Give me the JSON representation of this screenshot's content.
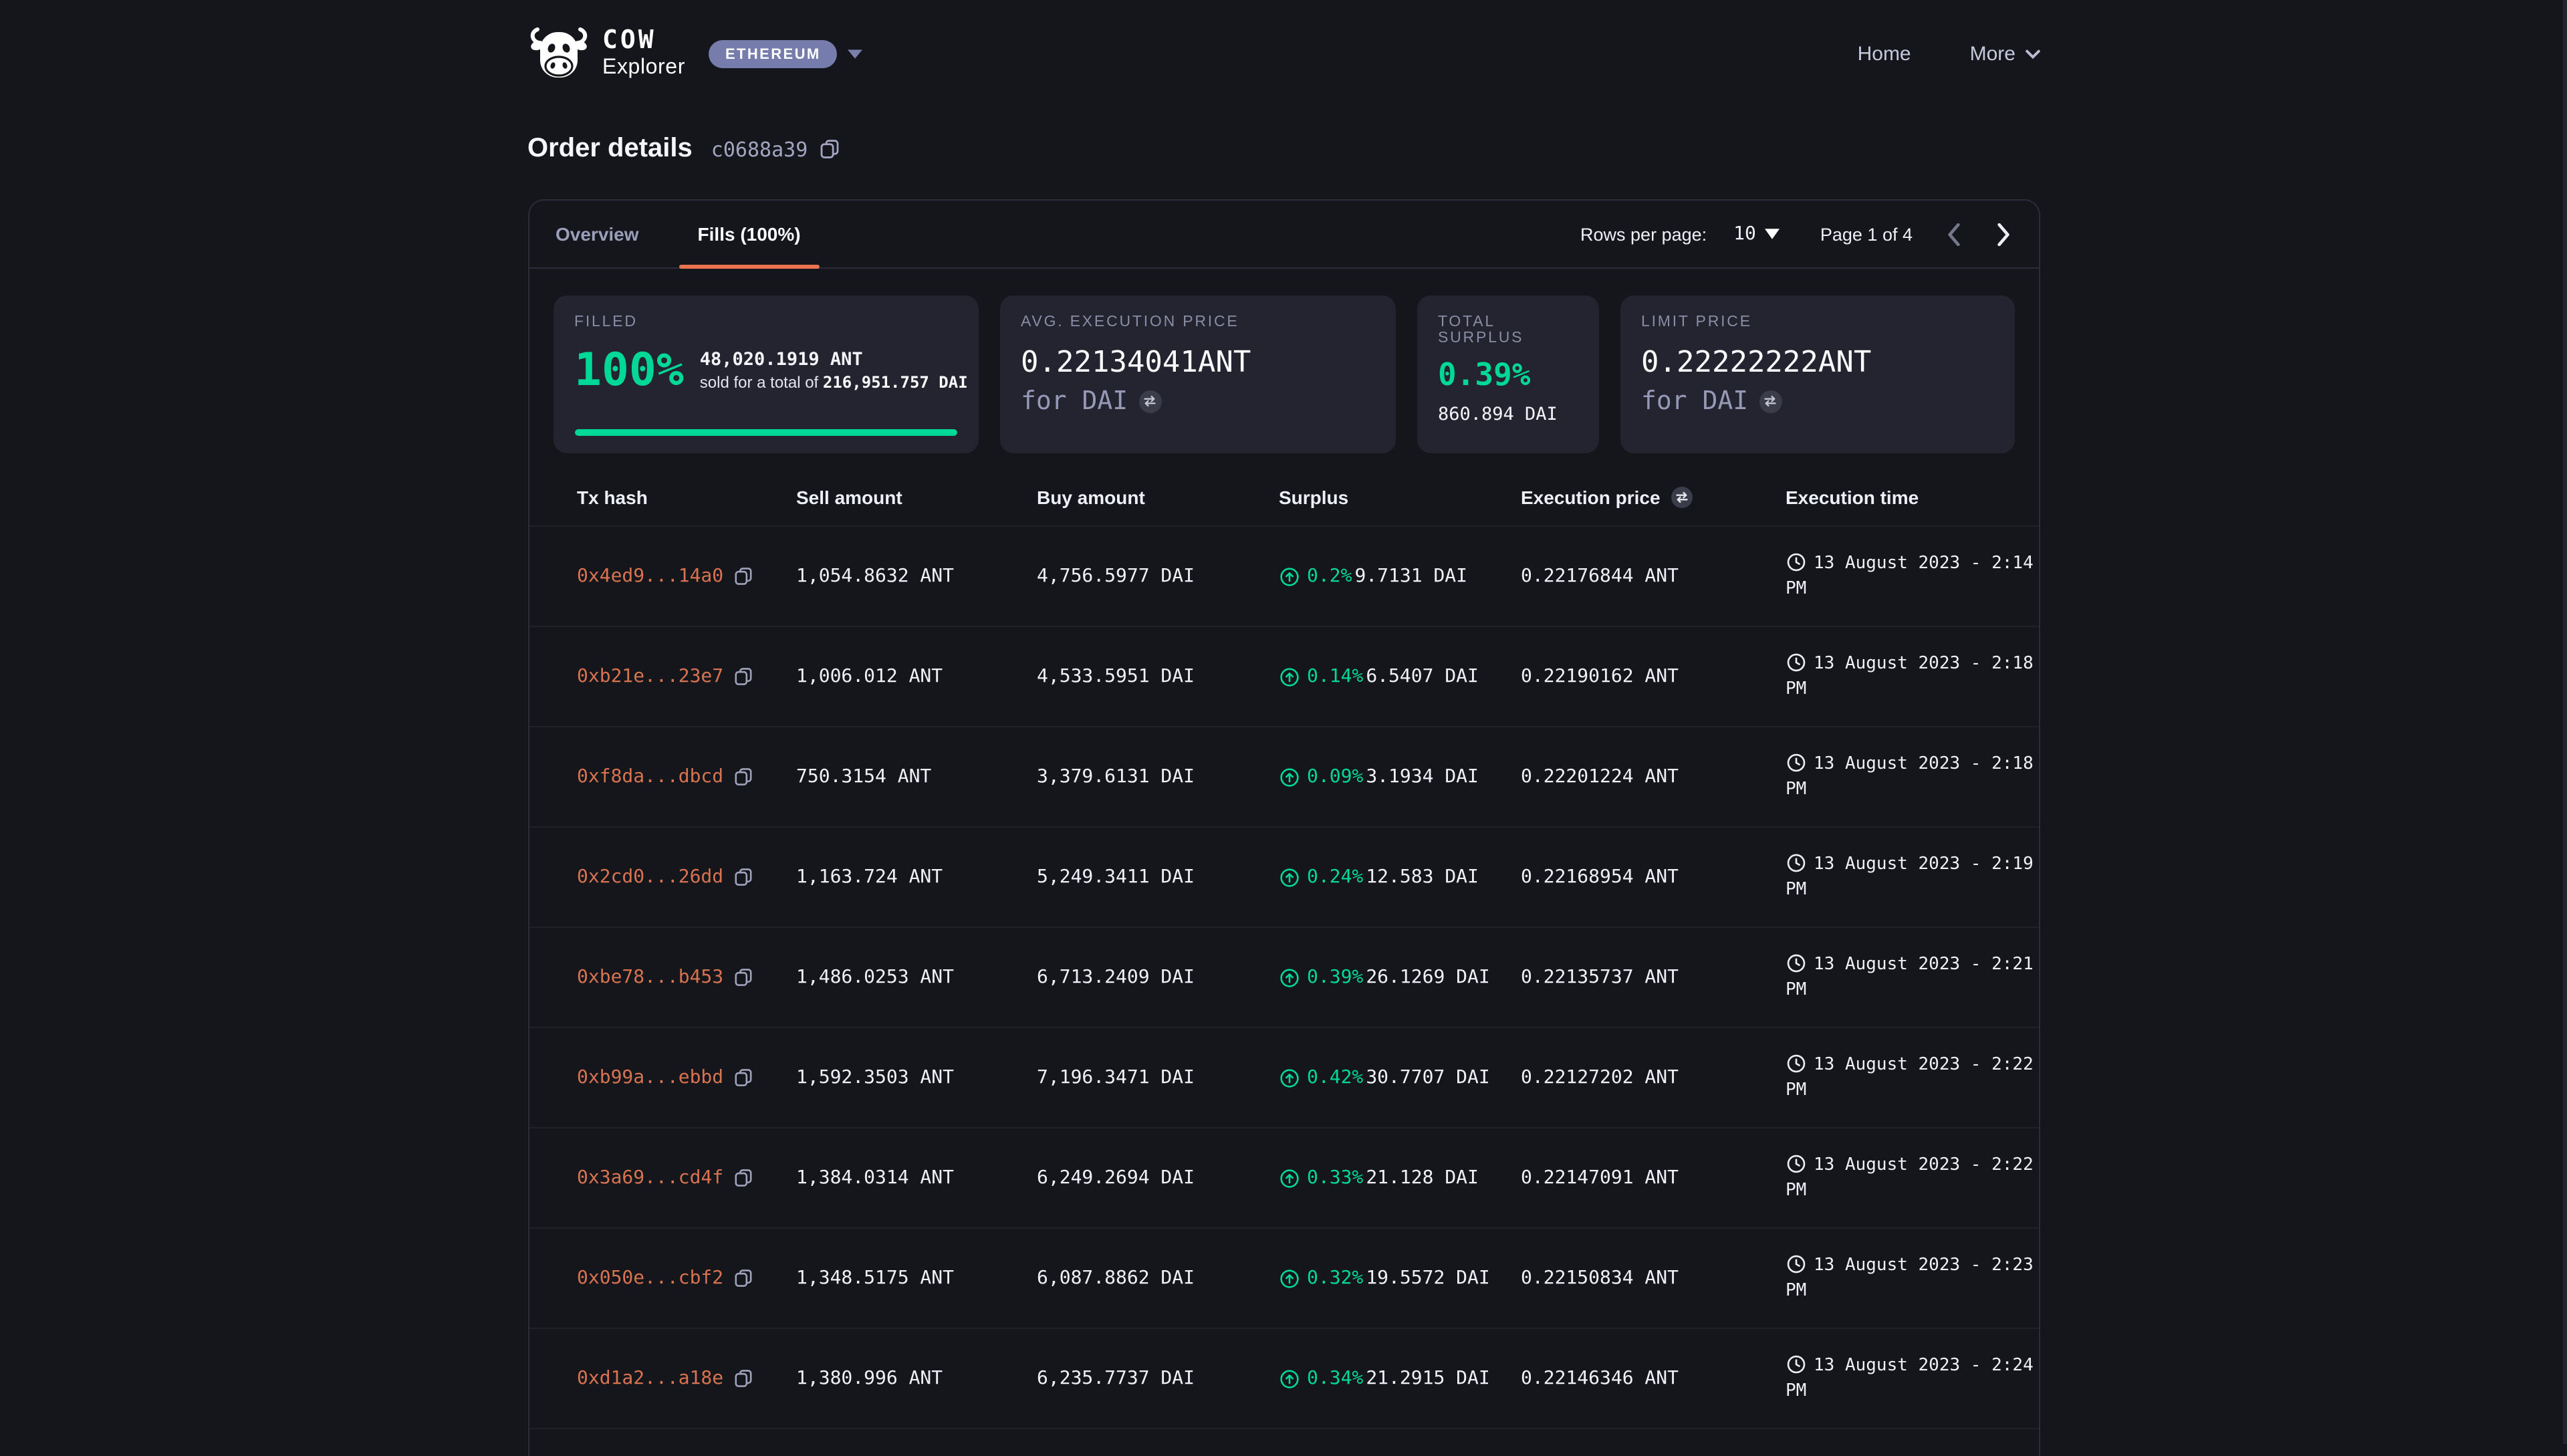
{
  "header": {
    "brand_primary": "COW",
    "brand_secondary": "Explorer",
    "network": "ETHEREUM",
    "nav": [
      {
        "label": "Home"
      },
      {
        "label": "More"
      }
    ]
  },
  "page": {
    "title": "Order details",
    "order_id": "c0688a39"
  },
  "tabs": {
    "overview": "Overview",
    "fills": "Fills (100%)"
  },
  "pagination": {
    "rows_per_page_label": "Rows per page:",
    "rows_per_page": "10",
    "page_label": "Page 1 of 4"
  },
  "cards": {
    "filled": {
      "label": "FILLED",
      "percent": "100%",
      "amount": "48,020.1919 ANT",
      "sold_prefix": "sold for a total of ",
      "sold_value": "216,951.757 DAI",
      "progress": 100
    },
    "avg_price": {
      "label": "AVG. EXECUTION PRICE",
      "value": "0.22134041ANT",
      "unit": "for DAI"
    },
    "surplus": {
      "label": "TOTAL SURPLUS",
      "percent": "0.39%",
      "value": "860.894 DAI"
    },
    "limit_price": {
      "label": "LIMIT PRICE",
      "value": "0.22222222ANT",
      "unit": "for DAI"
    }
  },
  "table": {
    "columns": [
      "Tx hash",
      "Sell amount",
      "Buy amount",
      "Surplus",
      "Execution price",
      "Execution time"
    ],
    "rows": [
      {
        "hash": "0x4ed9...14a0",
        "sell": "1,054.8632 ANT",
        "buy": "4,756.5977 DAI",
        "surplus_pct": "0.2%",
        "surplus_amount": "9.7131 DAI",
        "price": "0.22176844 ANT",
        "time": "13 August 2023 - 2:14 PM"
      },
      {
        "hash": "0xb21e...23e7",
        "sell": "1,006.012 ANT",
        "buy": "4,533.5951 DAI",
        "surplus_pct": "0.14%",
        "surplus_amount": "6.5407 DAI",
        "price": "0.22190162 ANT",
        "time": "13 August 2023 - 2:18 PM"
      },
      {
        "hash": "0xf8da...dbcd",
        "sell": "750.3154 ANT",
        "buy": "3,379.6131 DAI",
        "surplus_pct": "0.09%",
        "surplus_amount": "3.1934 DAI",
        "price": "0.22201224 ANT",
        "time": "13 August 2023 - 2:18 PM"
      },
      {
        "hash": "0x2cd0...26dd",
        "sell": "1,163.724 ANT",
        "buy": "5,249.3411 DAI",
        "surplus_pct": "0.24%",
        "surplus_amount": "12.583 DAI",
        "price": "0.22168954 ANT",
        "time": "13 August 2023 - 2:19 PM"
      },
      {
        "hash": "0xbe78...b453",
        "sell": "1,486.0253 ANT",
        "buy": "6,713.2409 DAI",
        "surplus_pct": "0.39%",
        "surplus_amount": "26.1269 DAI",
        "price": "0.22135737 ANT",
        "time": "13 August 2023 - 2:21 PM"
      },
      {
        "hash": "0xb99a...ebbd",
        "sell": "1,592.3503 ANT",
        "buy": "7,196.3471 DAI",
        "surplus_pct": "0.42%",
        "surplus_amount": "30.7707 DAI",
        "price": "0.22127202 ANT",
        "time": "13 August 2023 - 2:22 PM"
      },
      {
        "hash": "0x3a69...cd4f",
        "sell": "1,384.0314 ANT",
        "buy": "6,249.2694 DAI",
        "surplus_pct": "0.33%",
        "surplus_amount": "21.128 DAI",
        "price": "0.22147091 ANT",
        "time": "13 August 2023 - 2:22 PM"
      },
      {
        "hash": "0x050e...cbf2",
        "sell": "1,348.5175 ANT",
        "buy": "6,087.8862 DAI",
        "surplus_pct": "0.32%",
        "surplus_amount": "19.5572 DAI",
        "price": "0.22150834 ANT",
        "time": "13 August 2023 - 2:23 PM"
      },
      {
        "hash": "0xd1a2...a18e",
        "sell": "1,380.996 ANT",
        "buy": "6,235.7737 DAI",
        "surplus_pct": "0.34%",
        "surplus_amount": "21.2915 DAI",
        "price": "0.22146346 ANT",
        "time": "13 August 2023 - 2:24 PM"
      }
    ]
  },
  "colors": {
    "accent_green": "#00d897",
    "accent_orange": "#e8734e",
    "link_orange": "#d8724f",
    "badge_purple": "#767cab",
    "background": "#15161c",
    "card_background": "#23242f"
  }
}
